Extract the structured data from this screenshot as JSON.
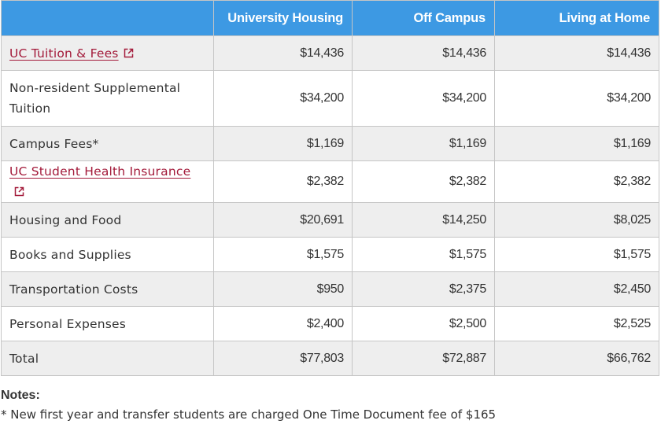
{
  "table": {
    "headers": [
      "",
      "University Housing",
      "Off Campus",
      "Living at Home"
    ],
    "rows": [
      {
        "label": "UC Tuition & Fees",
        "link": true,
        "values": [
          "$14,436",
          "$14,436",
          "$14,436"
        ]
      },
      {
        "label": "Non-resident Supplemental\nTuition",
        "link": false,
        "values": [
          "$34,200",
          "$34,200",
          "$34,200"
        ]
      },
      {
        "label": "Campus Fees*",
        "link": false,
        "values": [
          "$1,169",
          "$1,169",
          "$1,169"
        ]
      },
      {
        "label": "UC Student Health Insurance",
        "link": true,
        "values": [
          "$2,382",
          "$2,382",
          "$2,382"
        ]
      },
      {
        "label": "Housing and Food",
        "link": false,
        "values": [
          "$20,691",
          "$14,250",
          "$8,025"
        ]
      },
      {
        "label": "Books and Supplies",
        "link": false,
        "values": [
          "$1,575",
          "$1,575",
          "$1,575"
        ]
      },
      {
        "label": "Transportation Costs",
        "link": false,
        "values": [
          "$950",
          "$2,375",
          "$2,450"
        ]
      },
      {
        "label": "Personal Expenses",
        "link": false,
        "values": [
          "$2,400",
          "$2,500",
          "$2,525"
        ]
      },
      {
        "label": "Total",
        "link": false,
        "values": [
          "$77,803",
          "$72,887",
          "$66,762"
        ]
      }
    ]
  },
  "notes": {
    "title": "Notes:",
    "text": "* New first year and transfer students are charged One Time Document fee of $165"
  },
  "colors": {
    "header_bg": "#3d99e3",
    "link": "#a31a3a",
    "stripe": "#eeeeee"
  },
  "icons": {
    "external_link": "external-link-icon"
  }
}
